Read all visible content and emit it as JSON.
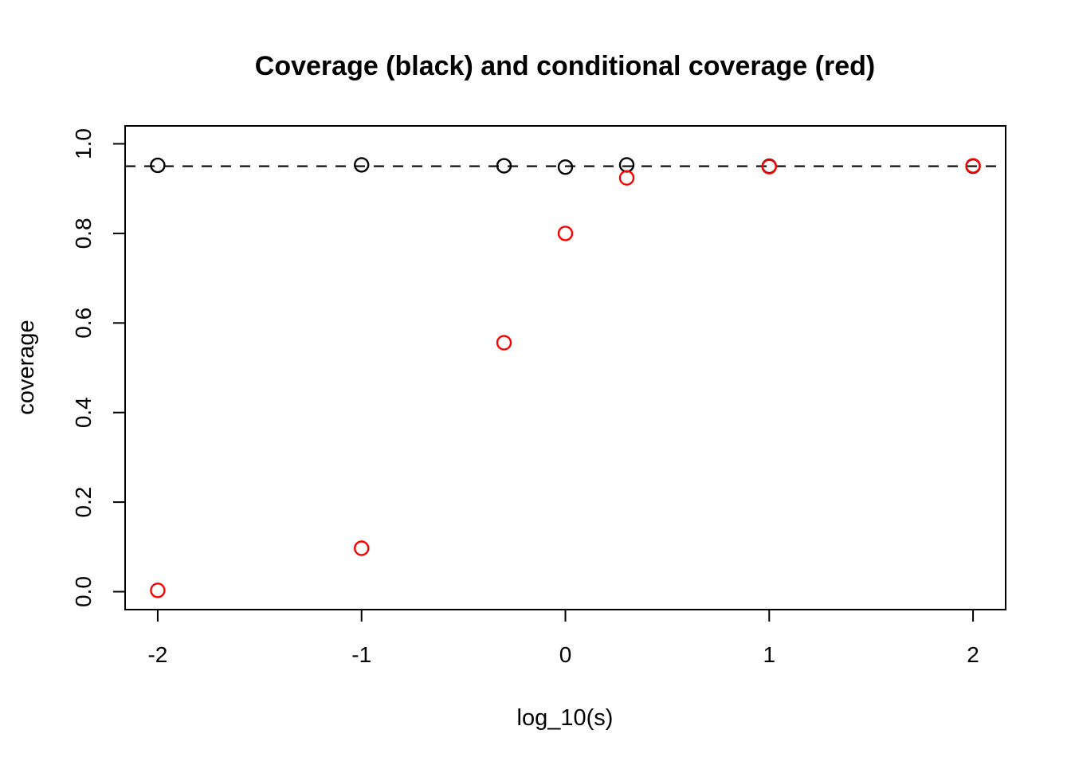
{
  "chart_data": {
    "type": "scatter",
    "title": "Coverage (black) and conditional coverage (red)",
    "xlabel": "log_10(s)",
    "ylabel": "coverage",
    "xlim": [
      -2.16,
      2.16
    ],
    "ylim": [
      -0.04,
      1.04
    ],
    "xticks": [
      -2,
      -1,
      0,
      1,
      2
    ],
    "xtick_labels": [
      "-2",
      "-1",
      "0",
      "1",
      "2"
    ],
    "yticks": [
      0.0,
      0.2,
      0.4,
      0.6,
      0.8,
      1.0
    ],
    "ytick_labels": [
      "0.0",
      "0.2",
      "0.4",
      "0.6",
      "0.8",
      "1.0"
    ],
    "grid": false,
    "legend_position": "none",
    "frame_color": "#000000",
    "reference_line": {
      "y": 0.95,
      "style": "dashed",
      "color": "#000000"
    },
    "marker": {
      "shape": "open-circle",
      "radius_px": 8.5,
      "stroke_px": 2.4
    },
    "series": [
      {
        "name": "coverage",
        "color": "#000000",
        "x": [
          -2,
          -1,
          -0.301,
          0,
          0.301,
          1,
          2
        ],
        "y": [
          0.952,
          0.953,
          0.951,
          0.948,
          0.953,
          0.95,
          0.95
        ]
      },
      {
        "name": "conditional coverage",
        "color": "#ff0000",
        "x": [
          -2,
          -1,
          -0.301,
          0,
          0.301,
          1,
          2
        ],
        "y": [
          0.003,
          0.097,
          0.556,
          0.8,
          0.924,
          0.949,
          0.951
        ]
      }
    ]
  }
}
